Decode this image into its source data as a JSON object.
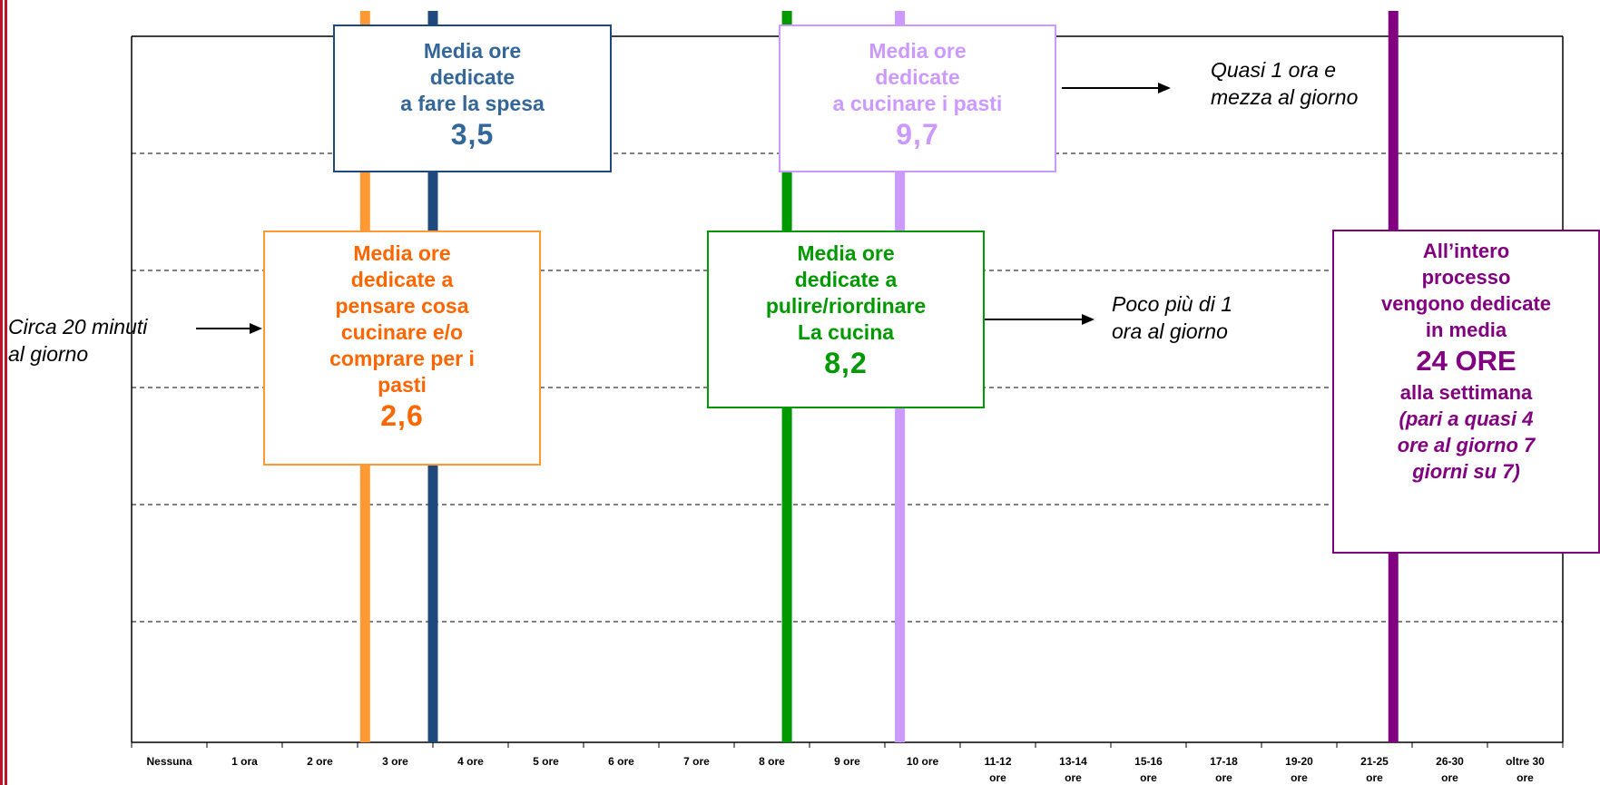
{
  "chart_data": {
    "type": "line",
    "categories": [
      "Nessuna",
      "1 ora",
      "2 ore",
      "3 ore",
      "4 ore",
      "5 ore",
      "6 ore",
      "7 ore",
      "8 ore",
      "9 ore",
      "10 ore",
      "11-12 ore",
      "13-14 ore",
      "15-16 ore",
      "17-18 ore",
      "19-20 ore",
      "21-25 ore",
      "26-30 ore",
      "oltre 30 ore"
    ],
    "grid": true,
    "markers": [
      {
        "key": "pensare",
        "value": 2.6,
        "color": "#ff9933"
      },
      {
        "key": "spesa",
        "value": 3.5,
        "color": "#1f497d"
      },
      {
        "key": "pulire",
        "value": 8.2,
        "color": "#009900"
      },
      {
        "key": "cucinare",
        "value": 9.7,
        "color": "#cc99ff"
      },
      {
        "key": "totale",
        "value": 24,
        "color": "#800080"
      }
    ]
  },
  "boxes": {
    "spesa": {
      "label_1": "Media ore",
      "label_2": "dedicate",
      "label_3": "a fare la spesa",
      "value": "3,5",
      "color": "#336699"
    },
    "cucinare": {
      "label_1": "Media ore",
      "label_2": "dedicate",
      "label_3": "a cucinare i pasti",
      "value": "9,7",
      "color": "#cc99ff"
    },
    "pensare": {
      "label_1": "Media ore",
      "label_2": "dedicate a",
      "label_3": "pensare cosa",
      "label_4": "cucinare e/o",
      "label_5": "comprare per i",
      "label_6": "pasti",
      "value": "2,6",
      "color": "#ff6600"
    },
    "pulire": {
      "label_1": "Media ore",
      "label_2": "dedicate a",
      "label_3": "pulire/riordinare",
      "label_4": "La cucina",
      "value": "8,2",
      "color": "#009900"
    },
    "totale": {
      "label_1": "All’intero",
      "label_2": "processo",
      "label_3": "vengono dedicate",
      "label_4": "in media",
      "big": "24 ORE",
      "label_5": "alla settimana",
      "note_1": "(pari a quasi 4",
      "note_2": "ore al giorno 7",
      "note_3": "giorni su 7)",
      "color": "#800080"
    }
  },
  "notes": {
    "pensare": {
      "line_1": "Circa 20 minuti",
      "line_2": "al giorno"
    },
    "cucinare": {
      "line_1": "Quasi 1 ora e",
      "line_2": "mezza al giorno"
    },
    "pulire": {
      "line_1": "Poco più di 1",
      "line_2": "ora al giorno"
    }
  }
}
